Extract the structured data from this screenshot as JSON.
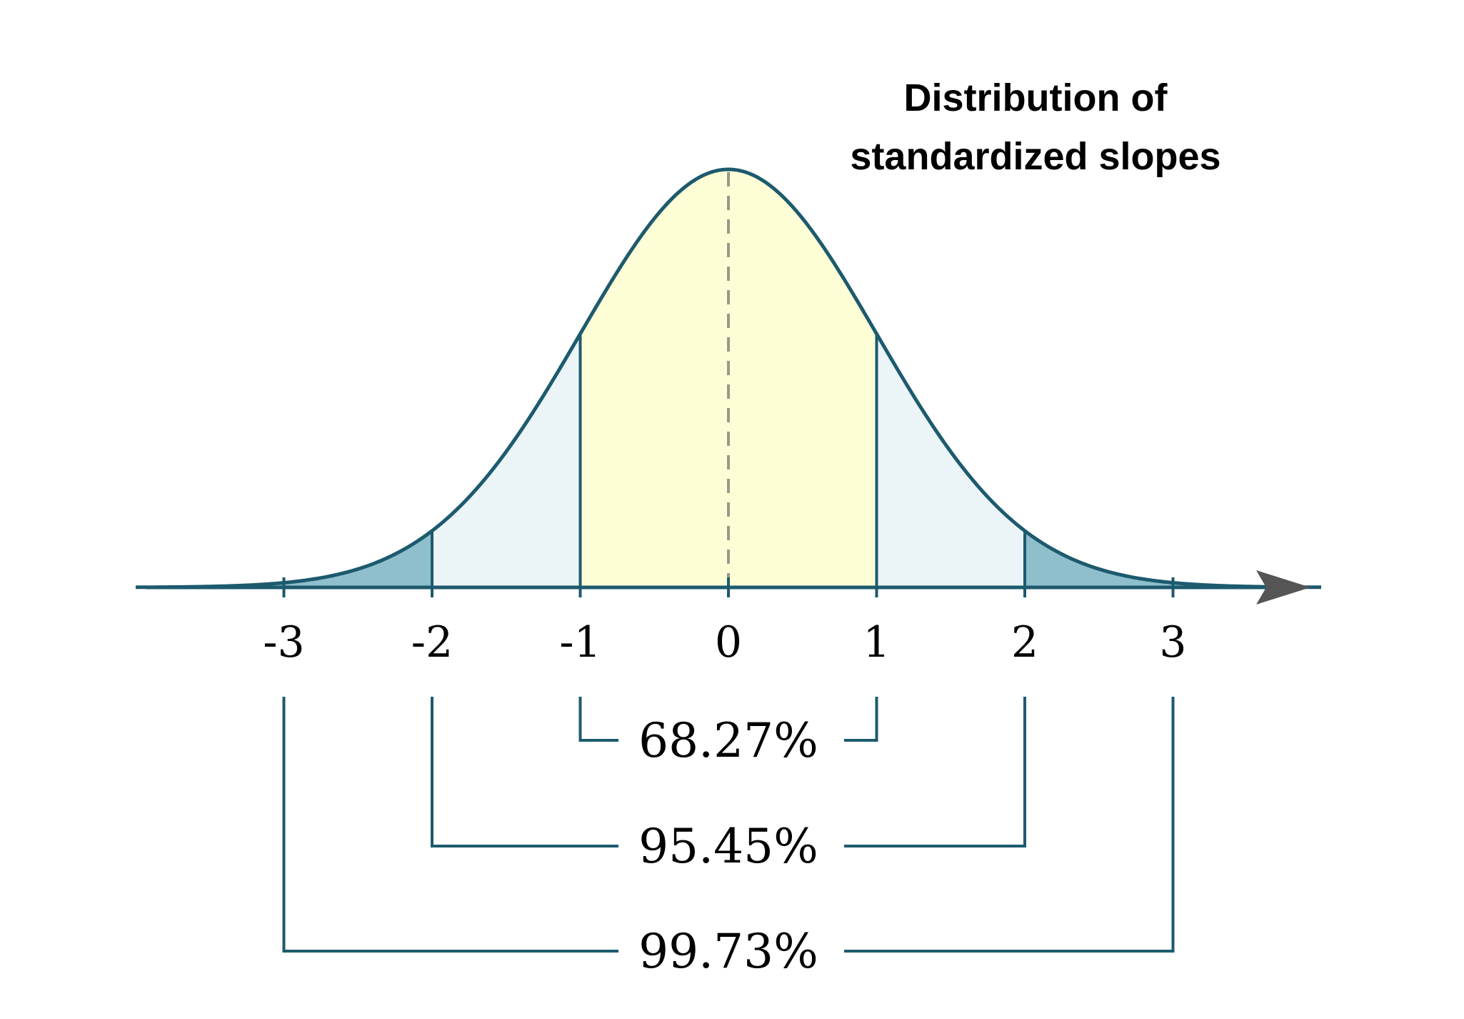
{
  "chart_data": {
    "type": "area",
    "title_lines": [
      "Distribution of",
      "standardized slopes"
    ],
    "distribution": "standard normal",
    "mean": 0,
    "sd": 1,
    "xlim": [
      -4,
      4
    ],
    "x_ticks": [
      -3,
      -2,
      -1,
      0,
      1,
      2,
      3
    ],
    "x_tick_labels": [
      "-3",
      "-2",
      "-1",
      "0",
      "1",
      "2",
      "3"
    ],
    "intervals": [
      {
        "from": -1,
        "to": 1,
        "label": "68.27%"
      },
      {
        "from": -2,
        "to": 2,
        "label": "95.45%"
      },
      {
        "from": -3,
        "to": 3,
        "label": "99.73%"
      }
    ],
    "mean_line": "dashed",
    "colors": {
      "curve": "#1d5a6e",
      "center_fill": "#fefed6",
      "middle_fill": "#ebf4f7",
      "tail_fill": "#8fbfcc",
      "bracket": "#1d5a6e",
      "axis": "#1d5a6e",
      "arrow": "#555555",
      "mean_line": "#999988"
    }
  }
}
